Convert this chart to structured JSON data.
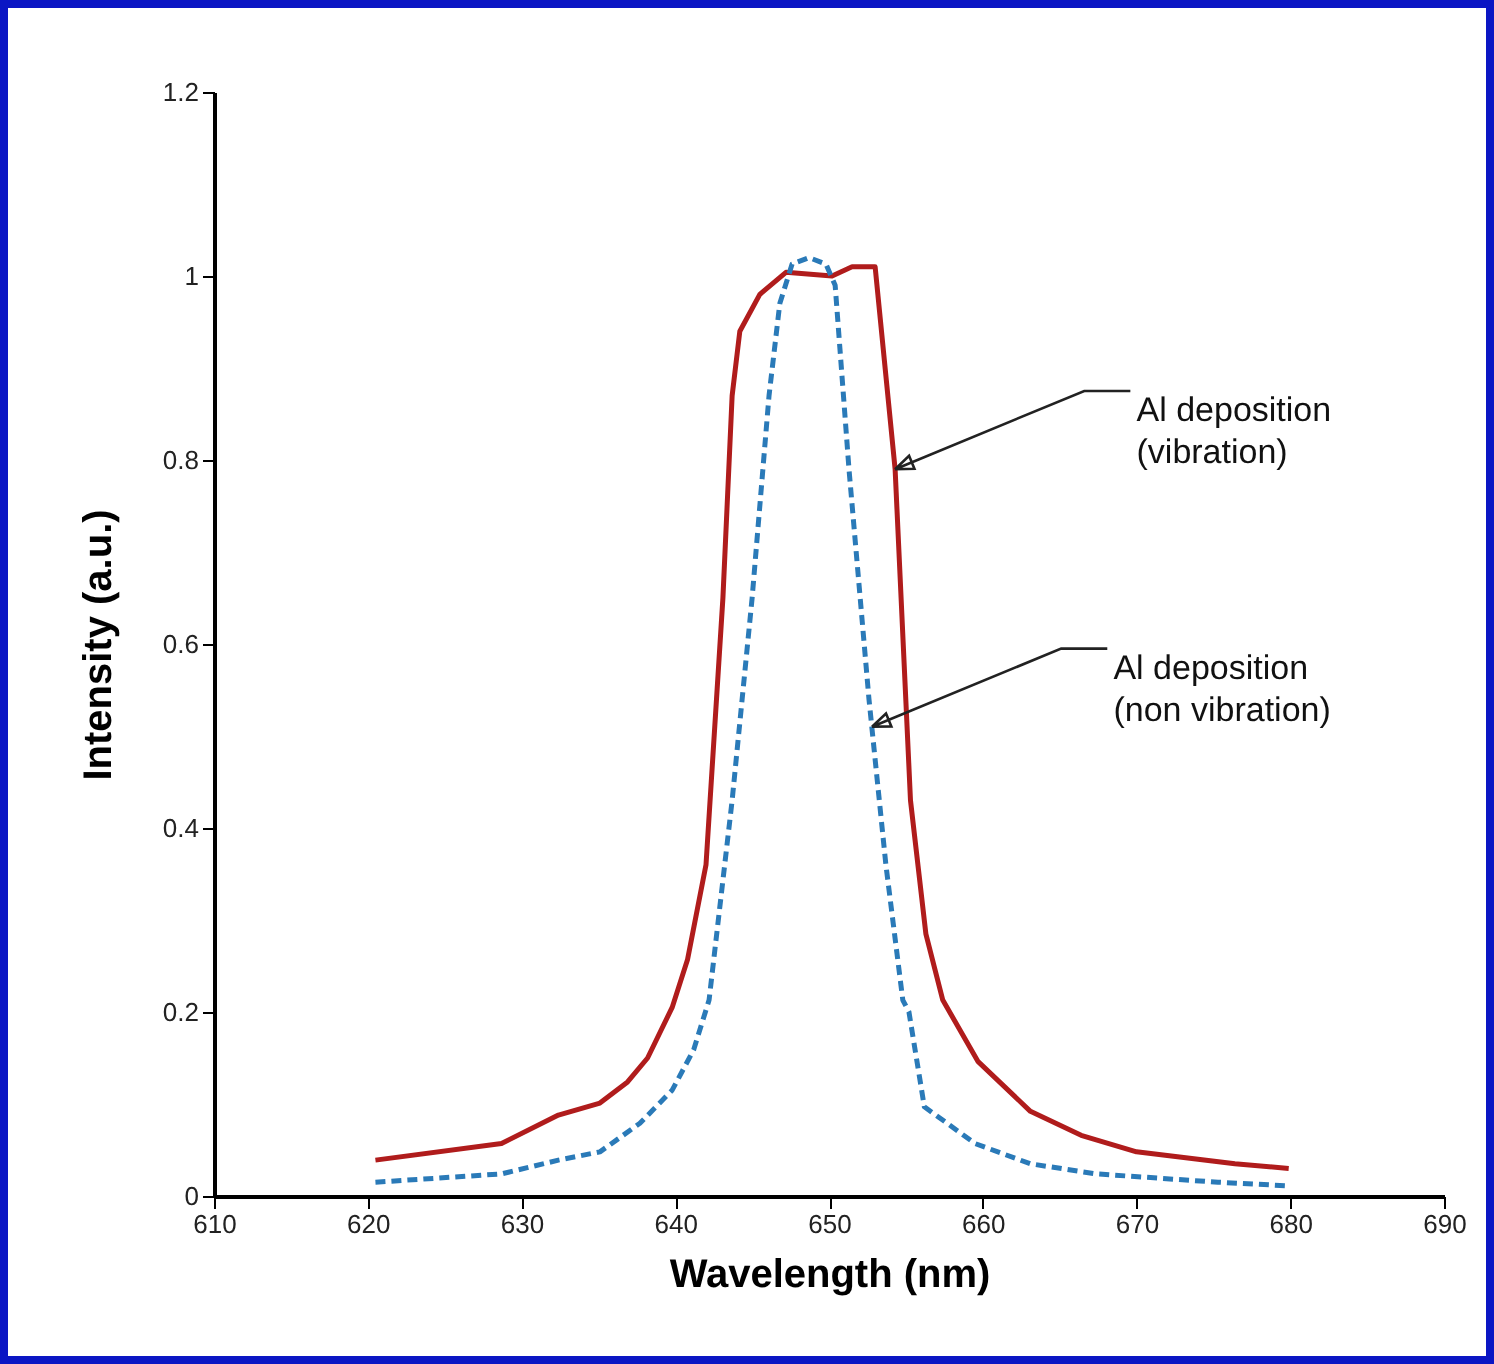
{
  "chart_data": {
    "type": "line",
    "xlabel": "Wavelength (nm)",
    "ylabel": "Intensity (a.u.)",
    "xlim": [
      610,
      690
    ],
    "xticks": [
      610,
      620,
      630,
      640,
      650,
      660,
      670,
      680,
      690
    ],
    "ylim": [
      0,
      1.2
    ],
    "yticks": [
      {
        "value": 0,
        "label": "0"
      },
      0.2,
      0.4,
      0.6,
      0.8,
      {
        "value": 1,
        "label": "1"
      },
      1.2
    ],
    "grid": false,
    "marker": "none",
    "series": [
      {
        "color": "#b01c1c",
        "line_style": "solid",
        "x": [
          620.5,
          628.7,
          632.4,
          635.1,
          636.9,
          638.2,
          639.8,
          640.8,
          642.0,
          643.1,
          643.7,
          644.2,
          645.5,
          647.2,
          650.2,
          651.5,
          653.0,
          654.3,
          655.3,
          656.3,
          657.4,
          659.7,
          663.1,
          666.4,
          670.0,
          676.4,
          679.9
        ],
        "values": [
          0.039,
          0.057,
          0.088,
          0.101,
          0.124,
          0.15,
          0.205,
          0.257,
          0.36,
          0.65,
          0.87,
          0.94,
          0.98,
          1.004,
          1.0,
          1.01,
          1.01,
          0.79,
          0.43,
          0.285,
          0.213,
          0.146,
          0.092,
          0.066,
          0.048,
          0.035,
          0.03
        ]
      },
      {
        "color": "#2a7ab8",
        "line_style": "dashed",
        "x": [
          620.5,
          628.7,
          632.4,
          635.1,
          637.7,
          639.8,
          641.2,
          642.2,
          643.7,
          645.0,
          646.1,
          646.8,
          647.6,
          648.7,
          649.8,
          650.4,
          651.3,
          652.6,
          653.7,
          654.8,
          655.2,
          656.2,
          659.5,
          663.1,
          667.4,
          675.3,
          679.9
        ],
        "values": [
          0.015,
          0.024,
          0.039,
          0.048,
          0.079,
          0.115,
          0.159,
          0.213,
          0.43,
          0.65,
          0.87,
          0.97,
          1.013,
          1.02,
          1.013,
          0.99,
          0.79,
          0.54,
          0.36,
          0.213,
          0.2,
          0.097,
          0.057,
          0.035,
          0.024,
          0.015,
          0.011
        ]
      }
    ],
    "annotations": [
      {
        "text": "Al deposition\n(vibration)",
        "x": 654.3,
        "y": 0.79
      },
      {
        "text": "Al deposition\n(non vibration)",
        "x": 652.8,
        "y": 0.51
      }
    ]
  }
}
